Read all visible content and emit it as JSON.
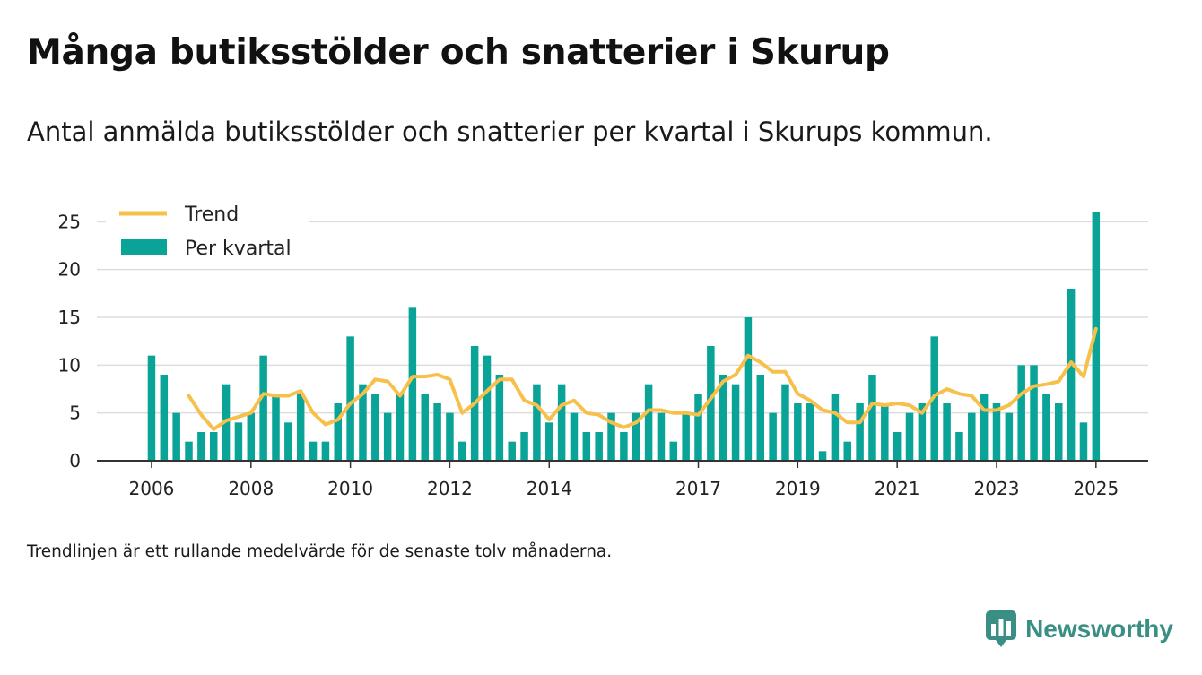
{
  "header": {
    "title": "Många butiksstölder och snatterier i Skurup",
    "subtitle": "Antal anmälda butiksstölder och snatterier per kvartal i Skurups kommun."
  },
  "footer": {
    "note": "Trendlinjen är ett rullande medelvärde för de senaste tolv månaderna.",
    "brand": "Newsworthy"
  },
  "colors": {
    "bars": "#0aa398",
    "trend": "#f7c04a",
    "grid": "#dddddd",
    "brand": "#3a8f84"
  },
  "chart_data": {
    "type": "bar",
    "title": "Många butiksstölder och snatterier i Skurup",
    "subtitle": "Antal anmälda butiksstölder och snatterier per kvartal i Skurups kommun.",
    "ylim": [
      0,
      27
    ],
    "y_ticks": [
      0,
      5,
      10,
      15,
      20,
      25
    ],
    "x_ticks": [
      "2006",
      "2008",
      "2010",
      "2012",
      "2014",
      "2017",
      "2019",
      "2021",
      "2023",
      "2025"
    ],
    "x_tick_positions": [
      2006,
      2008,
      2010,
      2012,
      2014,
      2017,
      2019,
      2021,
      2023,
      2025
    ],
    "xlim": [
      2004.9,
      2026.05
    ],
    "grid": "horizontal",
    "legend": {
      "position": "top-left",
      "entries": [
        "Trend",
        "Per kvartal"
      ]
    },
    "x": [
      2006.0,
      2006.25,
      2006.5,
      2006.75,
      2007.0,
      2007.25,
      2007.5,
      2007.75,
      2008.0,
      2008.25,
      2008.5,
      2008.75,
      2009.0,
      2009.25,
      2009.5,
      2009.75,
      2010.0,
      2010.25,
      2010.5,
      2010.75,
      2011.0,
      2011.25,
      2011.5,
      2011.75,
      2012.0,
      2012.25,
      2012.5,
      2012.75,
      2013.0,
      2013.25,
      2013.5,
      2013.75,
      2014.0,
      2014.25,
      2014.5,
      2014.75,
      2015.0,
      2015.25,
      2015.5,
      2015.75,
      2016.0,
      2016.25,
      2016.5,
      2016.75,
      2017.0,
      2017.25,
      2017.5,
      2017.75,
      2018.0,
      2018.25,
      2018.5,
      2018.75,
      2019.0,
      2019.25,
      2019.5,
      2019.75,
      2020.0,
      2020.25,
      2020.5,
      2020.75,
      2021.0,
      2021.25,
      2021.5,
      2021.75,
      2022.0,
      2022.25,
      2022.5,
      2022.75,
      2023.0,
      2023.25,
      2023.5,
      2023.75,
      2024.0,
      2024.25,
      2024.5,
      2024.75,
      2025.0
    ],
    "series": [
      {
        "name": "Per kvartal",
        "type": "bar",
        "values": [
          11,
          9,
          5,
          2,
          3,
          3,
          8,
          4,
          5,
          11,
          7,
          4,
          7,
          2,
          2,
          6,
          13,
          8,
          7,
          5,
          7,
          16,
          7,
          6,
          5,
          2,
          12,
          11,
          9,
          2,
          3,
          8,
          4,
          8,
          5,
          3,
          3,
          5,
          3,
          5,
          8,
          5,
          2,
          5,
          7,
          12,
          9,
          8,
          15,
          9,
          5,
          8,
          6,
          6,
          1,
          7,
          2,
          6,
          9,
          6,
          3,
          5,
          6,
          13,
          6,
          3,
          5,
          7,
          6,
          5,
          10,
          10,
          7,
          6,
          18,
          4,
          26
        ]
      },
      {
        "name": "Trend",
        "type": "line",
        "values": [
          null,
          null,
          null,
          6.8,
          4.8,
          3.3,
          4.2,
          4.6,
          5.0,
          7.0,
          6.8,
          6.8,
          7.3,
          5.0,
          3.8,
          4.3,
          6.0,
          7.0,
          8.5,
          8.3,
          6.8,
          8.8,
          8.8,
          9.0,
          8.5,
          5.0,
          6.0,
          7.3,
          8.5,
          8.5,
          6.3,
          5.8,
          4.3,
          5.8,
          6.3,
          5.0,
          4.8,
          4.0,
          3.5,
          4.0,
          5.3,
          5.3,
          5.0,
          5.0,
          4.8,
          6.5,
          8.3,
          9.0,
          11.0,
          10.3,
          9.3,
          9.3,
          7.0,
          6.3,
          5.3,
          5.0,
          4.0,
          4.0,
          6.0,
          5.8,
          6.0,
          5.8,
          5.0,
          6.8,
          7.5,
          7.0,
          6.8,
          5.3,
          5.3,
          5.8,
          7.0,
          7.8,
          8.0,
          8.3,
          10.3,
          8.8,
          13.8
        ]
      }
    ]
  }
}
